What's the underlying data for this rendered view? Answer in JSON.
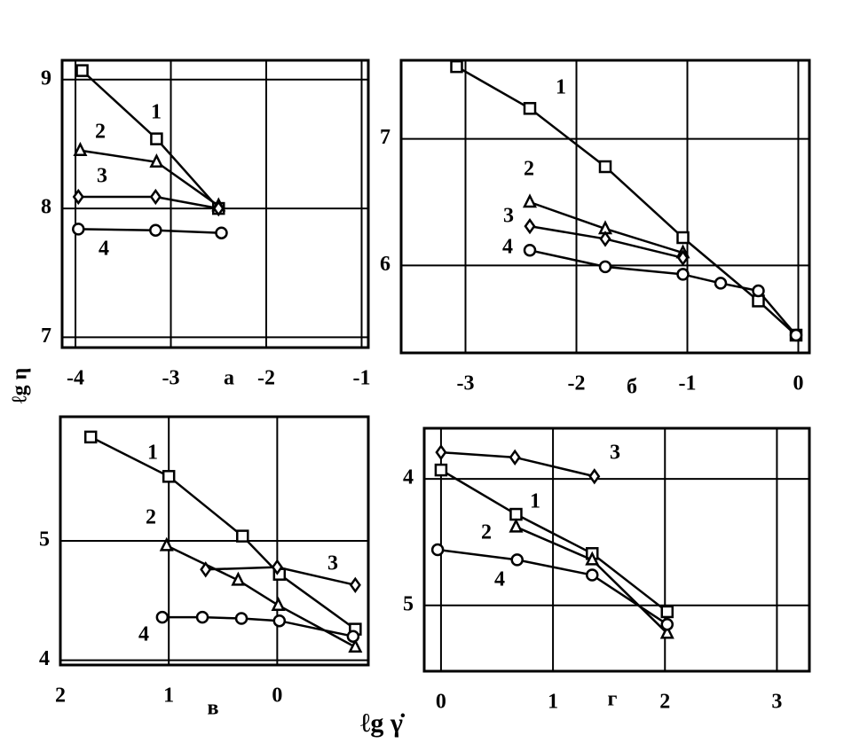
{
  "chart_data": [
    {
      "type": "line",
      "xlabel": "а",
      "xlim": [
        -4.14,
        -0.93
      ],
      "ylim": [
        6.92,
        9.15
      ],
      "xticks": [
        -4,
        -3,
        -2,
        -1
      ],
      "yticks": [
        7,
        8,
        9
      ],
      "grid": true,
      "series": [
        {
          "name": "1",
          "color": "#000000",
          "marker": "square",
          "x": [
            -3.93,
            -3.15,
            -2.5
          ],
          "values": [
            9.07,
            8.54,
            8.0
          ]
        },
        {
          "name": "2",
          "color": "#000000",
          "marker": "triangle",
          "x": [
            -3.95,
            -3.15,
            -2.5
          ],
          "values": [
            8.45,
            8.36,
            8.02
          ]
        },
        {
          "name": "3",
          "color": "#000000",
          "marker": "diamond",
          "x": [
            -3.97,
            -3.16,
            -2.5
          ],
          "values": [
            8.09,
            8.09,
            8.0
          ]
        },
        {
          "name": "4",
          "color": "#000000",
          "marker": "circle",
          "x": [
            -3.97,
            -3.16,
            -2.47
          ],
          "values": [
            7.84,
            7.83,
            7.81
          ]
        }
      ]
    },
    {
      "type": "line",
      "xlabel": "б",
      "xlim": [
        -3.58,
        0.1
      ],
      "ylim": [
        5.31,
        7.62
      ],
      "xticks": [
        -3,
        -2,
        -1,
        0
      ],
      "yticks": [
        6,
        7
      ],
      "grid": true,
      "series": [
        {
          "name": "1",
          "color": "#000000",
          "marker": "square",
          "x": [
            -3.08,
            -2.42,
            -1.74,
            -1.04,
            -0.36,
            -0.02
          ],
          "values": [
            7.57,
            7.24,
            6.78,
            6.22,
            5.72,
            5.45
          ]
        },
        {
          "name": "2",
          "color": "#000000",
          "marker": "triangle",
          "x": [
            -2.42,
            -1.74,
            -1.04
          ],
          "values": [
            6.5,
            6.29,
            6.1
          ]
        },
        {
          "name": "3",
          "color": "#000000",
          "marker": "diamond",
          "x": [
            -2.42,
            -1.74,
            -1.04
          ],
          "values": [
            6.31,
            6.21,
            6.06
          ]
        },
        {
          "name": "4",
          "color": "#000000",
          "marker": "circle",
          "x": [
            -2.42,
            -1.74,
            -1.04,
            -0.7,
            -0.36,
            -0.02
          ],
          "values": [
            6.12,
            5.99,
            5.93,
            5.86,
            5.8,
            5.45
          ]
        }
      ]
    },
    {
      "type": "line",
      "xlabel": "в",
      "xlim": [
        2.0,
        -0.84
      ],
      "ylim": [
        3.96,
        6.04
      ],
      "xticks": [
        2,
        1,
        0
      ],
      "yticks": [
        4,
        5
      ],
      "grid": true,
      "series": [
        {
          "name": "1",
          "color": "#000000",
          "marker": "square",
          "x": [
            1.72,
            1.0,
            0.32,
            -0.02,
            -0.72
          ],
          "values": [
            5.87,
            5.54,
            5.04,
            4.72,
            4.26
          ]
        },
        {
          "name": "2",
          "color": "#000000",
          "marker": "triangle",
          "x": [
            1.02,
            0.36,
            -0.01,
            -0.72
          ],
          "values": [
            4.96,
            4.67,
            4.46,
            4.11
          ]
        },
        {
          "name": "3",
          "color": "#000000",
          "marker": "diamond",
          "x": [
            0.66,
            0.0,
            -0.72
          ],
          "values": [
            4.76,
            4.78,
            4.63
          ]
        },
        {
          "name": "4",
          "color": "#000000",
          "marker": "circle",
          "x": [
            1.06,
            0.69,
            0.33,
            -0.02,
            -0.7
          ],
          "values": [
            4.36,
            4.36,
            4.35,
            4.33,
            4.2
          ]
        }
      ]
    },
    {
      "type": "line",
      "xlabel": "г",
      "xlim": [
        -0.15,
        3.29
      ],
      "ylim": [
        5.52,
        3.6
      ],
      "xticks": [
        0,
        1,
        2,
        3
      ],
      "yticks": [
        4,
        5
      ],
      "grid": true,
      "series": [
        {
          "name": "1",
          "color": "#000000",
          "marker": "square",
          "x": [
            0.0,
            0.67,
            1.35,
            2.02
          ],
          "values": [
            3.93,
            4.28,
            4.59,
            5.05
          ]
        },
        {
          "name": "2",
          "color": "#000000",
          "marker": "triangle",
          "x": [
            0.67,
            1.35,
            2.02
          ],
          "values": [
            4.38,
            4.64,
            5.22
          ]
        },
        {
          "name": "3",
          "color": "#000000",
          "marker": "diamond",
          "x": [
            0.0,
            0.66,
            1.37
          ],
          "values": [
            3.79,
            3.83,
            3.98
          ]
        },
        {
          "name": "4",
          "color": "#000000",
          "marker": "circle",
          "x": [
            -0.03,
            0.68,
            1.35,
            2.02
          ],
          "values": [
            4.56,
            4.64,
            4.76,
            5.15
          ]
        }
      ]
    }
  ],
  "shared": {
    "xlabel": "ℓg γ̇",
    "ylabel": "ℓg η"
  }
}
